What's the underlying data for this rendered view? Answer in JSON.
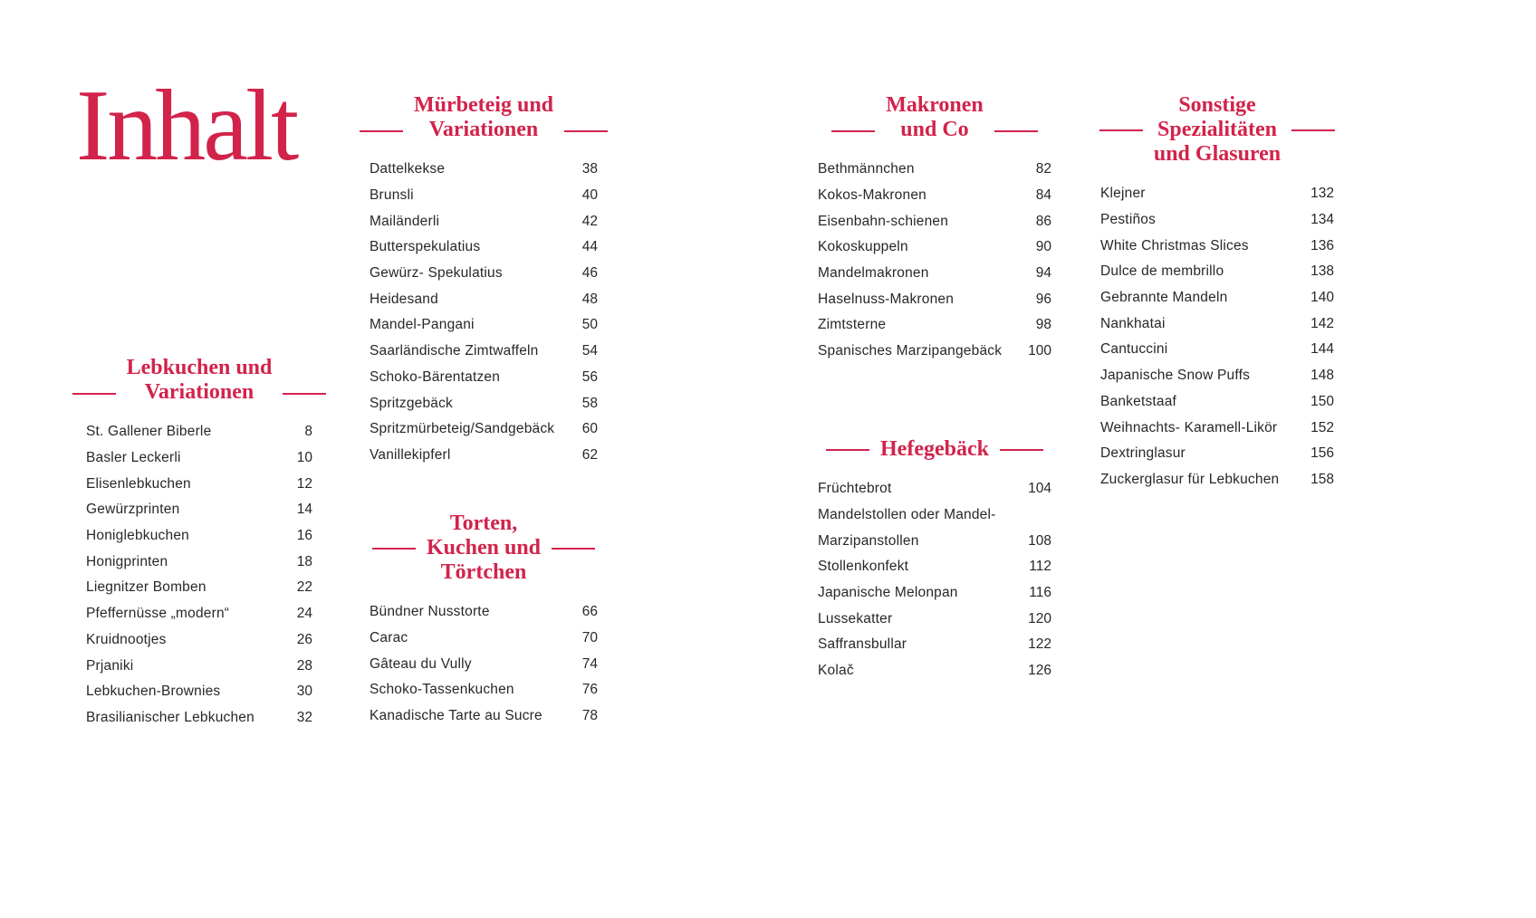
{
  "page_title": "Inhalt",
  "colors": {
    "accent": "#d2234b",
    "text": "#2b2628",
    "background": "#ffffff"
  },
  "sections": [
    {
      "id": "lebkuchen",
      "heading": "Lebkuchen und\nVariationen",
      "items": [
        {
          "label": "St. Gallener Biberle",
          "page": "8"
        },
        {
          "label": "Basler Leckerli",
          "page": "10"
        },
        {
          "label": "Elisenlebkuchen",
          "page": "12"
        },
        {
          "label": "Gewürzprinten",
          "page": "14"
        },
        {
          "label": "Honiglebkuchen",
          "page": "16"
        },
        {
          "label": "Honigprinten",
          "page": "18"
        },
        {
          "label": "Liegnitzer Bomben",
          "page": "22"
        },
        {
          "label": "Pfeffernüsse „modern“",
          "page": "24"
        },
        {
          "label": "Kruidnootjes",
          "page": "26"
        },
        {
          "label": "Prjaniki",
          "page": "28"
        },
        {
          "label": "Lebkuchen-Brownies",
          "page": "30"
        },
        {
          "label": "Brasilianischer Lebkuchen",
          "page": "32"
        }
      ]
    },
    {
      "id": "muerbeteig",
      "heading": "Mürbeteig und\nVariationen",
      "items": [
        {
          "label": "Dattelkekse",
          "page": "38"
        },
        {
          "label": "Brunsli",
          "page": "40"
        },
        {
          "label": "Mailänderli",
          "page": "42"
        },
        {
          "label": "Butterspekulatius",
          "page": "44"
        },
        {
          "label": "Gewürz- Spekulatius",
          "page": "46"
        },
        {
          "label": "Heidesand",
          "page": "48"
        },
        {
          "label": "Mandel-Pangani",
          "page": "50"
        },
        {
          "label": "Saarländische Zimtwaffeln",
          "page": "54"
        },
        {
          "label": "Schoko-Bärentatzen",
          "page": "56"
        },
        {
          "label": "Spritzgebäck",
          "page": "58"
        },
        {
          "label": "Spritzmürbeteig/Sandgebäck",
          "page": "60"
        },
        {
          "label": "Vanillekipferl",
          "page": "62"
        }
      ]
    },
    {
      "id": "torten",
      "heading": "Torten,\nKuchen und\nTörtchen",
      "items": [
        {
          "label": "Bündner Nusstorte",
          "page": "66"
        },
        {
          "label": "Carac",
          "page": "70"
        },
        {
          "label": "Gâteau du Vully",
          "page": "74"
        },
        {
          "label": "Schoko-Tassenkuchen",
          "page": "76"
        },
        {
          "label": "Kanadische Tarte au Sucre",
          "page": "78"
        }
      ]
    },
    {
      "id": "makronen",
      "heading": "Makronen\nund Co",
      "items": [
        {
          "label": "Bethmännchen",
          "page": "82"
        },
        {
          "label": "Kokos-Makronen",
          "page": "84"
        },
        {
          "label": "Eisenbahn-schienen",
          "page": "86"
        },
        {
          "label": "Kokoskuppeln",
          "page": "90"
        },
        {
          "label": "Mandelmakronen",
          "page": "94"
        },
        {
          "label": "Haselnuss-Makronen",
          "page": "96"
        },
        {
          "label": "Zimtsterne",
          "page": "98"
        },
        {
          "label": "Spanisches Marzipangebäck",
          "page": "100"
        }
      ]
    },
    {
      "id": "hefegebaeck",
      "heading": "Hefegebäck",
      "items": [
        {
          "label": "Früchtebrot",
          "page": "104"
        },
        {
          "label": "Mandelstollen oder Mandel-",
          "page": ""
        },
        {
          "label": "Marzipanstollen",
          "page": "108"
        },
        {
          "label": "Stollenkonfekt",
          "page": "112"
        },
        {
          "label": "Japanische Melonpan",
          "page": "116"
        },
        {
          "label": "Lussekatter",
          "page": "120"
        },
        {
          "label": "Saffransbullar",
          "page": "122"
        },
        {
          "label": "Kolač",
          "page": "126"
        }
      ]
    },
    {
      "id": "sonstige",
      "heading": "Sonstige\nSpezialitäten\nund Glasuren",
      "items": [
        {
          "label": "Klejner",
          "page": "132"
        },
        {
          "label": "Pestiños",
          "page": "134"
        },
        {
          "label": "White Christmas Slices",
          "page": "136"
        },
        {
          "label": "Dulce de membrillo",
          "page": "138"
        },
        {
          "label": "Gebrannte Mandeln",
          "page": "140"
        },
        {
          "label": "Nankhatai",
          "page": "142"
        },
        {
          "label": "Cantuccini",
          "page": "144"
        },
        {
          "label": "Japanische Snow Puffs",
          "page": "148"
        },
        {
          "label": "Banketstaaf",
          "page": "150"
        },
        {
          "label": "Weihnachts- Karamell-Likör",
          "page": "152"
        },
        {
          "label": "Dextringlasur",
          "page": "156"
        },
        {
          "label": "Zuckerglasur für Lebkuchen",
          "page": "158"
        }
      ]
    }
  ]
}
